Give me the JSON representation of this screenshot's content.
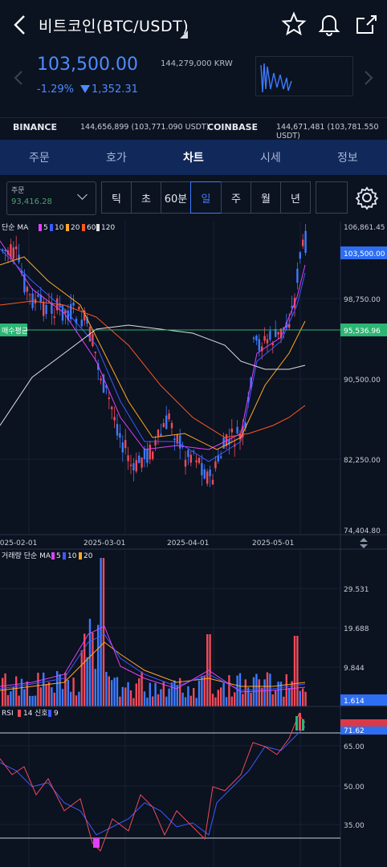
{
  "header": {
    "title": "비트코인(BTC/USDT)",
    "back_icon": "chevron-left-icon",
    "star_icon": "star-icon",
    "bell_icon": "bell-icon",
    "share_icon": "share-icon"
  },
  "price": {
    "last": "103,500.00",
    "krw": "144,279,000 KRW",
    "change_pct": "-1.29%",
    "change_val": "1,352.31",
    "color": "#4d8cff"
  },
  "exchanges": [
    {
      "name": "BINANCE",
      "value": "144,656,899 (103,771.090 USDT)"
    },
    {
      "name": "COINBASE",
      "value": "144,671,481 (103,781.550 USDT)"
    }
  ],
  "tabs": [
    {
      "label": "주문",
      "active": false
    },
    {
      "label": "호가",
      "active": false
    },
    {
      "label": "차트",
      "active": true
    },
    {
      "label": "시세",
      "active": false
    },
    {
      "label": "정보",
      "active": false
    }
  ],
  "toolbar": {
    "order_label": "주문",
    "order_value": "93,416.28",
    "intervals": [
      {
        "label": "틱",
        "on": false
      },
      {
        "label": "초",
        "on": false
      },
      {
        "label": "60분",
        "on": false
      },
      {
        "label": "일",
        "on": true
      },
      {
        "label": "주",
        "on": false
      },
      {
        "label": "월",
        "on": false
      },
      {
        "label": "년",
        "on": false
      }
    ]
  },
  "price_chart": {
    "legend_prefix": "단순 MA",
    "ma": [
      {
        "period": "5",
        "color": "#e040fb"
      },
      {
        "period": "10",
        "color": "#3d5afe"
      },
      {
        "period": "20",
        "color": "#ffa726"
      },
      {
        "period": "60",
        "color": "#ff5722"
      },
      {
        "period": "120",
        "color": "#e0e0e0"
      }
    ],
    "y_labels": [
      "106,861.45",
      "98,750.00",
      "90,500.00",
      "82,250.00",
      "74,404.80"
    ],
    "current_price_label": "103,500.00",
    "avg_label": "매수평균",
    "avg_value": "95,536.96",
    "x_labels": [
      "2025-02-01",
      "2025-03-01",
      "2025-04-01",
      "2025-05-01"
    ],
    "up_color": "#ef4a5a",
    "down_color": "#3d7bff"
  },
  "volume_chart": {
    "legend_prefix": "거래량 단순 MA",
    "ma": [
      {
        "period": "5",
        "color": "#e040fb"
      },
      {
        "period": "10",
        "color": "#3d5afe"
      },
      {
        "period": "20",
        "color": "#ffa726"
      }
    ],
    "y_labels": [
      "29.531",
      "19.688",
      "9.844"
    ],
    "current_label": "1.614"
  },
  "rsi_chart": {
    "legend_prefix": "RSI",
    "period": "14",
    "signal_label": "신호",
    "signal_period": "9",
    "y_labels": [
      "65.00",
      "50.00",
      "35.00"
    ],
    "current_label": "71.62"
  }
}
